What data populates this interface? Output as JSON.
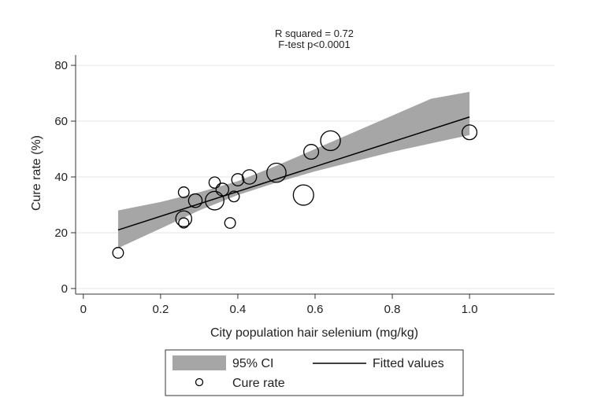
{
  "chart_data": {
    "type": "scatter",
    "annotations": [
      "R squared = 0.72",
      "F-test p<0.0001"
    ],
    "xlabel": "City population hair selenium (mg/kg)",
    "ylabel": "Cure rate (%)",
    "xlim": [
      -0.02,
      1.22
    ],
    "ylim": [
      -2,
      82
    ],
    "xticks": [
      "0",
      "0.2",
      "0.4",
      "0.6",
      "0.8",
      "1.0"
    ],
    "xtick_values": [
      0,
      0.2,
      0.4,
      0.6,
      0.8,
      1.0
    ],
    "yticks": [
      "0",
      "20",
      "40",
      "60",
      "80"
    ],
    "ytick_values": [
      0,
      20,
      40,
      60,
      80
    ],
    "grid": "horizontal",
    "legend_position": "bottom",
    "legend": {
      "ci_label": "95% CI",
      "fit_label": "Fitted values",
      "points_label": "Cure rate"
    },
    "colors": {
      "ci_band": "#a6a6a6",
      "fit_line": "#000000",
      "marker_edge": "#000000",
      "grid": "#e6e6e6"
    },
    "fitted_line": {
      "x": [
        0.09,
        1.0
      ],
      "y": [
        21.0,
        61.5
      ]
    },
    "ci_band": {
      "x": [
        0.09,
        0.2,
        0.3,
        0.4,
        0.5,
        0.6,
        0.7,
        0.8,
        0.9,
        1.0
      ],
      "lower": [
        14.5,
        21.5,
        28.0,
        33.5,
        38.0,
        42.0,
        45.5,
        49.0,
        52.0,
        55.0
      ],
      "upper": [
        28.0,
        31.0,
        34.5,
        38.5,
        44.0,
        50.0,
        56.0,
        62.0,
        68.0,
        70.5
      ]
    },
    "points": [
      {
        "x": 0.09,
        "y": 12.8,
        "weight": 1.0
      },
      {
        "x": 0.26,
        "y": 23.5,
        "weight": 0.9
      },
      {
        "x": 0.26,
        "y": 25.0,
        "weight": 2.2
      },
      {
        "x": 0.26,
        "y": 34.5,
        "weight": 1.0
      },
      {
        "x": 0.29,
        "y": 31.5,
        "weight": 1.6
      },
      {
        "x": 0.34,
        "y": 31.5,
        "weight": 3.0
      },
      {
        "x": 0.34,
        "y": 38.0,
        "weight": 1.1
      },
      {
        "x": 0.36,
        "y": 35.5,
        "weight": 1.4
      },
      {
        "x": 0.38,
        "y": 23.5,
        "weight": 1.0
      },
      {
        "x": 0.39,
        "y": 33.0,
        "weight": 1.0
      },
      {
        "x": 0.4,
        "y": 39.0,
        "weight": 1.3
      },
      {
        "x": 0.43,
        "y": 40.0,
        "weight": 1.8
      },
      {
        "x": 0.5,
        "y": 41.5,
        "weight": 3.2
      },
      {
        "x": 0.57,
        "y": 33.5,
        "weight": 3.6
      },
      {
        "x": 0.59,
        "y": 49.0,
        "weight": 1.9
      },
      {
        "x": 0.64,
        "y": 53.0,
        "weight": 3.4
      },
      {
        "x": 1.0,
        "y": 56.0,
        "weight": 1.9
      }
    ]
  }
}
